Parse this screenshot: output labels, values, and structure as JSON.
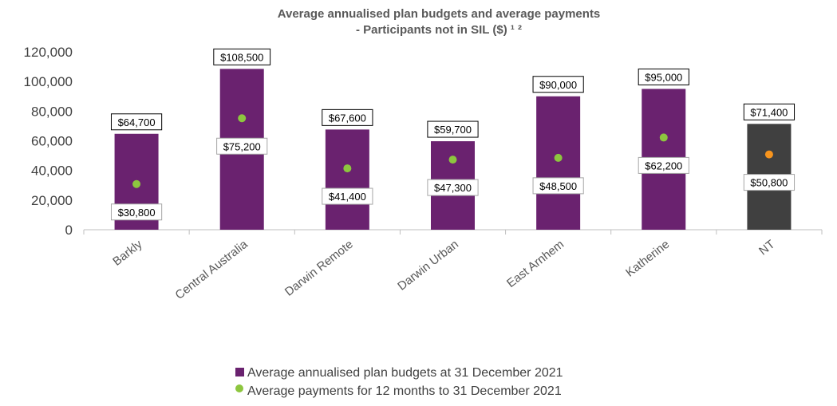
{
  "chart_data": {
    "type": "bar",
    "title_line1": "Average annualised plan budgets and average payments",
    "title_line2": "- Participants not in SIL ($) ¹ ²",
    "categories": [
      "Barkly",
      "Central Australia",
      "Darwin Remote",
      "Darwin Urban",
      "East Arnhem",
      "Katherine",
      "NT"
    ],
    "series": [
      {
        "name": "Average annualised plan budgets at 31 December 2021",
        "type": "bar",
        "values": [
          64700,
          108500,
          67600,
          59700,
          90000,
          95000,
          71400
        ],
        "labels": [
          "$64,700",
          "$108,500",
          "$67,600",
          "$59,700",
          "$90,000",
          "$95,000",
          "$71,400"
        ]
      },
      {
        "name": "Average payments for 12 months to 31 December 2021",
        "type": "scatter",
        "values": [
          30800,
          75200,
          41400,
          47300,
          48500,
          62200,
          50800
        ],
        "labels": [
          "$30,800",
          "$75,200",
          "$41,400",
          "$47,300",
          "$48,500",
          "$62,200",
          "$50,800"
        ]
      }
    ],
    "ylim": [
      0,
      120000
    ],
    "yticks": [
      0,
      20000,
      40000,
      60000,
      80000,
      100000,
      120000
    ],
    "ytick_labels": [
      "0",
      "20,000",
      "40,000",
      "60,000",
      "80,000",
      "100,000",
      "120,000"
    ],
    "grid": false,
    "legend_position": "bottom",
    "colors": {
      "bar": "#6a226f",
      "bar_highlight": "#404040",
      "dot": "#8dc63f",
      "dot_highlight": "#f7941d"
    },
    "highlight_category": "NT"
  }
}
